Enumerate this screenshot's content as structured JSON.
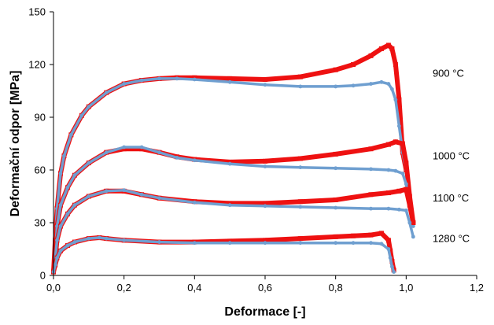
{
  "chart_data": {
    "type": "scatter",
    "title": "",
    "xlabel": "Deformace [-]",
    "ylabel": "Deformační odpor [MPa]",
    "xlim": [
      0,
      1.2
    ],
    "ylim": [
      0,
      150
    ],
    "xticks": [
      0,
      0.2,
      0.4,
      0.6,
      0.8,
      1.0,
      1.2
    ],
    "yticks": [
      0,
      30,
      60,
      90,
      120,
      150
    ],
    "xtick_labels": [
      "0,0",
      "0,2",
      "0,4",
      "0,6",
      "0,8",
      "1,0",
      "1,2"
    ],
    "ytick_labels": [
      "0",
      "30",
      "60",
      "90",
      "120",
      "150"
    ],
    "grid": false,
    "colors": {
      "red": "#ee1111",
      "blue": "#6f9fd0"
    },
    "annotations": [
      {
        "text": "900 °C",
        "x": 1.075,
        "y": 113
      },
      {
        "text": "1000 °C",
        "x": 1.075,
        "y": 66
      },
      {
        "text": "1100 °C",
        "x": 1.075,
        "y": 42
      },
      {
        "text": "1280 °C",
        "x": 1.075,
        "y": 19
      }
    ],
    "series": [
      {
        "color": "red",
        "x": [
          0,
          0.005,
          0.01,
          0.02,
          0.03,
          0.05,
          0.08,
          0.1,
          0.15,
          0.2,
          0.25,
          0.3,
          0.35,
          0.4,
          0.5,
          0.6,
          0.7,
          0.8,
          0.85,
          0.9,
          0.93,
          0.95,
          0.96,
          0.97,
          0.98,
          0.99,
          1.0
        ],
        "y": [
          2,
          20,
          38,
          58,
          68,
          80,
          91,
          96,
          104,
          109,
          111,
          112,
          112.5,
          112.5,
          112,
          111.5,
          113,
          117,
          120,
          125,
          129,
          131,
          129,
          120,
          100,
          70,
          60
        ]
      },
      {
        "color": "blue",
        "x": [
          0,
          0.005,
          0.01,
          0.02,
          0.03,
          0.05,
          0.08,
          0.1,
          0.15,
          0.2,
          0.25,
          0.3,
          0.35,
          0.4,
          0.5,
          0.6,
          0.7,
          0.8,
          0.85,
          0.9,
          0.93,
          0.95,
          0.96,
          0.97,
          0.98,
          0.99,
          1.0
        ],
        "y": [
          2,
          20,
          38,
          58,
          68,
          80,
          91,
          96,
          104,
          109,
          111,
          112,
          112,
          111.5,
          110,
          108.5,
          107.5,
          107.5,
          108,
          109,
          110,
          109,
          106,
          100,
          85,
          70,
          60
        ]
      },
      {
        "color": "red",
        "x": [
          0,
          0.005,
          0.01,
          0.02,
          0.04,
          0.06,
          0.1,
          0.15,
          0.2,
          0.25,
          0.3,
          0.35,
          0.4,
          0.5,
          0.6,
          0.7,
          0.8,
          0.9,
          0.95,
          0.97,
          0.99,
          1.0,
          1.01,
          1.02
        ],
        "y": [
          2,
          12,
          28,
          40,
          50,
          57,
          64,
          70,
          72,
          72,
          70,
          67.5,
          66,
          64.5,
          65,
          66.5,
          69,
          72,
          74.5,
          76,
          75,
          64,
          45,
          30
        ]
      },
      {
        "color": "blue",
        "x": [
          0,
          0.005,
          0.01,
          0.02,
          0.04,
          0.06,
          0.1,
          0.15,
          0.2,
          0.25,
          0.3,
          0.35,
          0.4,
          0.5,
          0.6,
          0.7,
          0.8,
          0.9,
          0.95,
          0.97,
          0.99,
          1.0,
          1.01,
          1.02
        ],
        "y": [
          2,
          12,
          28,
          40,
          50,
          57,
          64,
          70,
          73,
          73,
          70,
          67,
          65.5,
          63.5,
          62,
          61.5,
          61,
          60.5,
          60,
          59.5,
          58,
          52,
          40,
          28
        ]
      },
      {
        "color": "red",
        "x": [
          0,
          0.005,
          0.01,
          0.02,
          0.04,
          0.06,
          0.1,
          0.15,
          0.2,
          0.25,
          0.3,
          0.4,
          0.5,
          0.6,
          0.7,
          0.8,
          0.9,
          0.95,
          0.98,
          1.0,
          1.01,
          1.02
        ],
        "y": [
          2,
          10,
          20,
          28,
          35,
          40,
          45,
          48,
          48,
          46,
          44,
          42,
          41,
          41,
          42,
          43,
          46,
          47,
          48,
          49,
          40,
          30
        ]
      },
      {
        "color": "blue",
        "x": [
          0,
          0.005,
          0.01,
          0.02,
          0.04,
          0.06,
          0.1,
          0.15,
          0.2,
          0.25,
          0.3,
          0.4,
          0.5,
          0.6,
          0.7,
          0.8,
          0.9,
          0.95,
          0.98,
          1.0,
          1.01,
          1.02
        ],
        "y": [
          2,
          10,
          20,
          28,
          35,
          40,
          45,
          48,
          48.5,
          46,
          44,
          41.5,
          40,
          39.5,
          39,
          38.5,
          38,
          38,
          37.5,
          37,
          30,
          22
        ]
      },
      {
        "color": "red",
        "x": [
          0,
          0.005,
          0.01,
          0.02,
          0.04,
          0.06,
          0.1,
          0.13,
          0.15,
          0.2,
          0.3,
          0.4,
          0.5,
          0.6,
          0.7,
          0.8,
          0.85,
          0.9,
          0.93,
          0.95,
          0.955,
          0.96,
          0.965
        ],
        "y": [
          2,
          6,
          10,
          14,
          17,
          19,
          21,
          21.5,
          21,
          20,
          19,
          19,
          19.5,
          20,
          21,
          22,
          22.5,
          23,
          24,
          20,
          14,
          8,
          3
        ]
      },
      {
        "color": "blue",
        "x": [
          0,
          0.005,
          0.01,
          0.02,
          0.04,
          0.06,
          0.1,
          0.13,
          0.15,
          0.2,
          0.3,
          0.4,
          0.5,
          0.6,
          0.7,
          0.8,
          0.85,
          0.9,
          0.93,
          0.95,
          0.955,
          0.96,
          0.965
        ],
        "y": [
          2,
          6,
          10,
          14,
          17,
          19,
          21,
          21.5,
          21,
          20,
          19,
          18.5,
          18.5,
          18.5,
          18.5,
          18.5,
          18.5,
          18.5,
          18,
          15,
          10,
          5,
          2
        ]
      }
    ]
  }
}
